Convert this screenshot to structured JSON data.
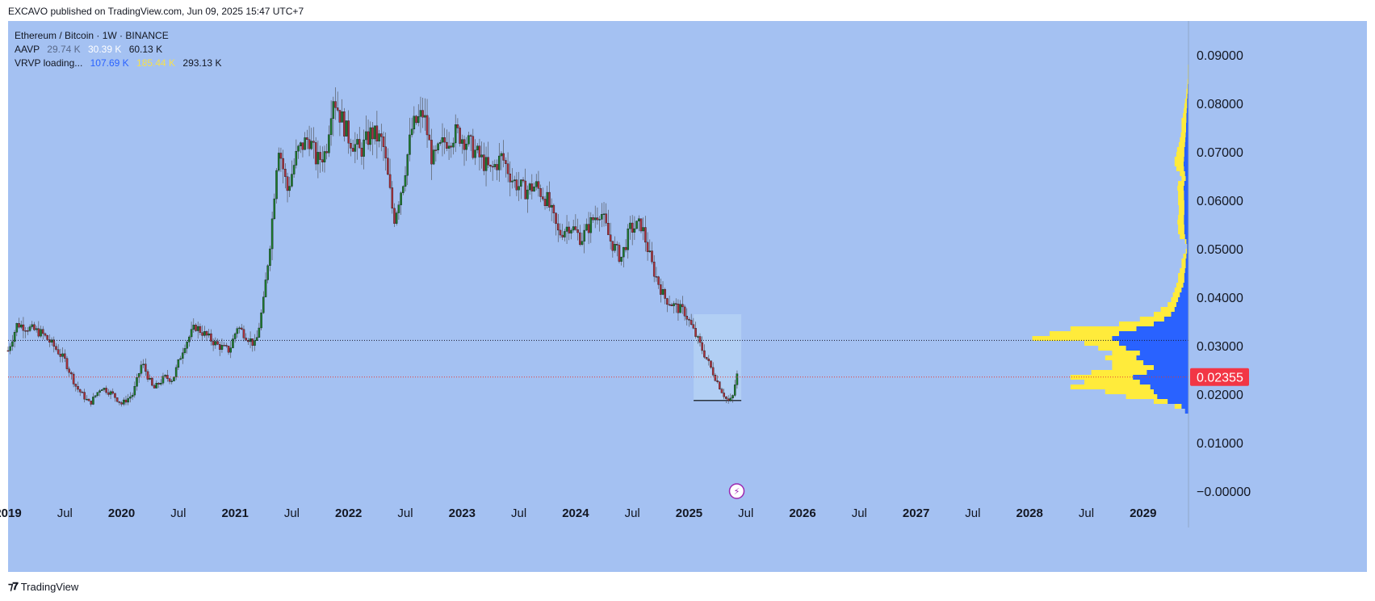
{
  "header": {
    "caption": "EXCAVO published on TradingView.com, Jun 09, 2025 15:47 UTC+7"
  },
  "legend": {
    "symbol": "Ethereum / Bitcoin · 1W · BINANCE",
    "aavp": {
      "name": "AAVP",
      "v1": "29.74 K",
      "v2": "30.39 K",
      "v3": "60.13 K"
    },
    "vrvp": {
      "name": "VRVP loading...",
      "v1": "107.69 K",
      "v2": "185.44 K",
      "v3": "293.13 K"
    }
  },
  "footer": {
    "brand": "TradingView",
    "logo_icon": "tradingview-logo-icon"
  },
  "colors": {
    "background": "#a4c1f2",
    "up": "#1e7a2e",
    "down": "#a8323c",
    "wick": "#4a4a4a",
    "price_line": "#e53935",
    "profile_up": "#2962ff",
    "profile_down": "#ffeb3b",
    "axis_text": "#131722",
    "price_label_bg": "#f23645"
  },
  "chart_data": {
    "type": "candlestick",
    "title": "Ethereum / Bitcoin · 1W · BINANCE",
    "last_price": "0.02355",
    "dotted_level": 0.0311,
    "ylim": [
      -0.002,
      0.097
    ],
    "y_ticks": [
      "0.09000",
      "0.08000",
      "0.07000",
      "0.06000",
      "0.05000",
      "0.04000",
      "0.03000",
      "0.02000",
      "0.01000",
      "−0.00000"
    ],
    "y_tick_values": [
      0.09,
      0.08,
      0.07,
      0.06,
      0.05,
      0.04,
      0.03,
      0.02,
      0.01,
      0.0
    ],
    "x_ticks": [
      "2019",
      "Jul",
      "2020",
      "Jul",
      "2021",
      "Jul",
      "2022",
      "Jul",
      "2023",
      "Jul",
      "2024",
      "Jul",
      "2025",
      "Jul",
      "2026",
      "Jul",
      "2027",
      "Jul",
      "2028",
      "Jul",
      "2029"
    ],
    "x_tick_values": [
      2019.0,
      2019.5,
      2020.0,
      2020.5,
      2021.0,
      2021.5,
      2022.0,
      2022.5,
      2023.0,
      2023.5,
      2024.0,
      2024.5,
      2025.0,
      2025.5,
      2026.0,
      2026.5,
      2027.0,
      2027.5,
      2028.0,
      2028.5,
      2029.0
    ],
    "x_tick_bold": [
      true,
      false,
      true,
      false,
      true,
      false,
      true,
      false,
      true,
      false,
      true,
      false,
      true,
      false,
      true,
      false,
      true,
      false,
      true,
      false,
      true
    ],
    "xlim": [
      2019.0,
      2029.4
    ],
    "price_path": [
      [
        2019.0,
        0.029
      ],
      [
        2019.08,
        0.0345
      ],
      [
        2019.2,
        0.0335
      ],
      [
        2019.3,
        0.0325
      ],
      [
        2019.4,
        0.03
      ],
      [
        2019.5,
        0.027
      ],
      [
        2019.6,
        0.0215
      ],
      [
        2019.72,
        0.018
      ],
      [
        2019.82,
        0.0215
      ],
      [
        2019.92,
        0.02
      ],
      [
        2020.0,
        0.018
      ],
      [
        2020.1,
        0.02
      ],
      [
        2020.18,
        0.0265
      ],
      [
        2020.28,
        0.021
      ],
      [
        2020.38,
        0.0235
      ],
      [
        2020.45,
        0.023
      ],
      [
        2020.55,
        0.03
      ],
      [
        2020.65,
        0.034
      ],
      [
        2020.75,
        0.032
      ],
      [
        2020.85,
        0.03
      ],
      [
        2020.95,
        0.029
      ],
      [
        2021.02,
        0.034
      ],
      [
        2021.1,
        0.032
      ],
      [
        2021.18,
        0.03
      ],
      [
        2021.25,
        0.039
      ],
      [
        2021.32,
        0.054
      ],
      [
        2021.38,
        0.072
      ],
      [
        2021.46,
        0.062
      ],
      [
        2021.55,
        0.07
      ],
      [
        2021.65,
        0.073
      ],
      [
        2021.72,
        0.068
      ],
      [
        2021.8,
        0.07
      ],
      [
        2021.86,
        0.082
      ],
      [
        2021.92,
        0.078
      ],
      [
        2022.0,
        0.073
      ],
      [
        2022.1,
        0.07
      ],
      [
        2022.2,
        0.074
      ],
      [
        2022.3,
        0.072
      ],
      [
        2022.4,
        0.056
      ],
      [
        2022.48,
        0.064
      ],
      [
        2022.56,
        0.075
      ],
      [
        2022.66,
        0.078
      ],
      [
        2022.74,
        0.068
      ],
      [
        2022.84,
        0.072
      ],
      [
        2022.95,
        0.074
      ],
      [
        2023.05,
        0.072
      ],
      [
        2023.15,
        0.069
      ],
      [
        2023.25,
        0.066
      ],
      [
        2023.35,
        0.069
      ],
      [
        2023.45,
        0.064
      ],
      [
        2023.55,
        0.062
      ],
      [
        2023.65,
        0.063
      ],
      [
        2023.75,
        0.06
      ],
      [
        2023.85,
        0.053
      ],
      [
        2023.95,
        0.055
      ],
      [
        2024.05,
        0.052
      ],
      [
        2024.15,
        0.056
      ],
      [
        2024.22,
        0.058
      ],
      [
        2024.3,
        0.052
      ],
      [
        2024.4,
        0.048
      ],
      [
        2024.48,
        0.054
      ],
      [
        2024.58,
        0.055
      ],
      [
        2024.68,
        0.046
      ],
      [
        2024.78,
        0.04
      ],
      [
        2024.88,
        0.038
      ],
      [
        2024.96,
        0.037
      ],
      [
        2025.04,
        0.033
      ],
      [
        2025.12,
        0.029
      ],
      [
        2025.2,
        0.025
      ],
      [
        2025.28,
        0.021
      ],
      [
        2025.34,
        0.0185
      ],
      [
        2025.38,
        0.019
      ],
      [
        2025.42,
        0.024
      ],
      [
        2025.44,
        0.0235
      ]
    ],
    "current_profile_box": {
      "x_start": 2025.04,
      "x_end": 2025.46,
      "y_low": 0.0187,
      "y_high": 0.0365
    },
    "volume_profile": {
      "price_step": 0.001,
      "rows": [
        [
          0.016,
          0.01,
          0.01
        ],
        [
          0.017,
          0.02,
          0.04
        ],
        [
          0.018,
          0.06,
          0.1
        ],
        [
          0.019,
          0.09,
          0.18
        ],
        [
          0.02,
          0.1,
          0.24
        ],
        [
          0.021,
          0.11,
          0.34
        ],
        [
          0.022,
          0.14,
          0.3
        ],
        [
          0.023,
          0.16,
          0.34
        ],
        [
          0.024,
          0.12,
          0.28
        ],
        [
          0.025,
          0.1,
          0.22
        ],
        [
          0.026,
          0.13,
          0.22
        ],
        [
          0.027,
          0.15,
          0.24
        ],
        [
          0.028,
          0.14,
          0.22
        ],
        [
          0.029,
          0.18,
          0.26
        ],
        [
          0.03,
          0.2,
          0.3
        ],
        [
          0.031,
          0.22,
          0.45
        ],
        [
          0.032,
          0.2,
          0.4
        ],
        [
          0.033,
          0.15,
          0.34
        ],
        [
          0.034,
          0.1,
          0.2
        ],
        [
          0.035,
          0.07,
          0.14
        ],
        [
          0.036,
          0.05,
          0.1
        ],
        [
          0.037,
          0.04,
          0.08
        ],
        [
          0.038,
          0.035,
          0.06
        ],
        [
          0.039,
          0.03,
          0.05
        ],
        [
          0.04,
          0.025,
          0.045
        ],
        [
          0.041,
          0.02,
          0.04
        ],
        [
          0.042,
          0.015,
          0.035
        ],
        [
          0.043,
          0.012,
          0.03
        ],
        [
          0.044,
          0.012,
          0.03
        ],
        [
          0.045,
          0.01,
          0.025
        ],
        [
          0.046,
          0.008,
          0.02
        ],
        [
          0.047,
          0.008,
          0.02
        ],
        [
          0.048,
          0.006,
          0.015
        ],
        [
          0.049,
          0.004,
          0.008
        ],
        [
          0.05,
          0.004,
          0.005
        ],
        [
          0.051,
          0.006,
          0.01
        ],
        [
          0.052,
          0.01,
          0.025
        ],
        [
          0.053,
          0.012,
          0.03
        ],
        [
          0.054,
          0.012,
          0.03
        ],
        [
          0.055,
          0.013,
          0.032
        ],
        [
          0.056,
          0.013,
          0.03
        ],
        [
          0.057,
          0.012,
          0.028
        ],
        [
          0.058,
          0.012,
          0.028
        ],
        [
          0.059,
          0.012,
          0.03
        ],
        [
          0.06,
          0.013,
          0.03
        ],
        [
          0.061,
          0.013,
          0.03
        ],
        [
          0.062,
          0.014,
          0.032
        ],
        [
          0.063,
          0.012,
          0.03
        ],
        [
          0.064,
          0.008,
          0.02
        ],
        [
          0.065,
          0.01,
          0.025
        ],
        [
          0.066,
          0.013,
          0.035
        ],
        [
          0.067,
          0.014,
          0.04
        ],
        [
          0.068,
          0.013,
          0.04
        ],
        [
          0.069,
          0.012,
          0.035
        ],
        [
          0.07,
          0.012,
          0.033
        ],
        [
          0.071,
          0.01,
          0.028
        ],
        [
          0.072,
          0.009,
          0.025
        ],
        [
          0.073,
          0.008,
          0.022
        ],
        [
          0.074,
          0.007,
          0.02
        ],
        [
          0.075,
          0.007,
          0.02
        ],
        [
          0.076,
          0.006,
          0.02
        ],
        [
          0.077,
          0.006,
          0.016
        ],
        [
          0.078,
          0.005,
          0.014
        ],
        [
          0.079,
          0.004,
          0.012
        ],
        [
          0.08,
          0.004,
          0.01
        ],
        [
          0.081,
          0.003,
          0.007
        ],
        [
          0.082,
          0.002,
          0.006
        ],
        [
          0.083,
          0.002,
          0.004
        ],
        [
          0.084,
          0.001,
          0.003
        ],
        [
          0.085,
          0.001,
          0.002
        ],
        [
          0.086,
          0.001,
          0.002
        ],
        [
          0.087,
          0.001,
          0.002
        ],
        [
          0.088,
          0.001,
          0.001
        ],
        [
          0.089,
          0.0005,
          0.001
        ],
        [
          0.09,
          0.0005,
          0.001
        ]
      ]
    }
  }
}
